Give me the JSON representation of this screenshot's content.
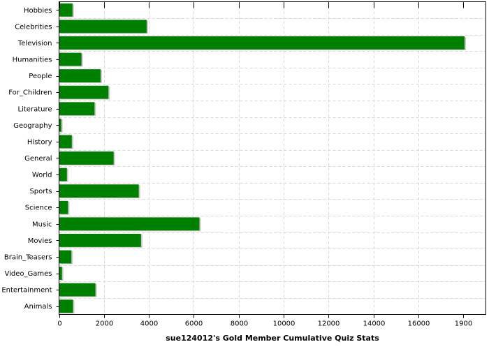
{
  "chart_data": {
    "type": "bar",
    "orientation": "horizontal",
    "categories": [
      "Hobbies",
      "Celebrities",
      "Television",
      "Humanities",
      "People",
      "For_Children",
      "Literature",
      "Geography",
      "History",
      "General",
      "World",
      "Sports",
      "Science",
      "Music",
      "Movies",
      "Brain_Teasers",
      "Video_Games",
      "Entertainment",
      "Animals"
    ],
    "values": [
      600,
      3900,
      18050,
      1000,
      1850,
      2200,
      1580,
      100,
      570,
      2430,
      350,
      3550,
      400,
      6250,
      3650,
      550,
      130,
      1620,
      620
    ],
    "xlabel": "sue124012's Gold Member Cumulative Quiz Stats",
    "ylabel": "",
    "xlim": [
      0,
      19000
    ],
    "xticks": [
      "0",
      "2000",
      "4000",
      "6000",
      "8000",
      "10000",
      "12000",
      "14000",
      "16000",
      "1900"
    ],
    "grid": true,
    "colors": {
      "bar": "#008000",
      "bar_shadow": "#c8c8c8",
      "grid": "#d8d8d8",
      "axis": "#000000"
    }
  }
}
